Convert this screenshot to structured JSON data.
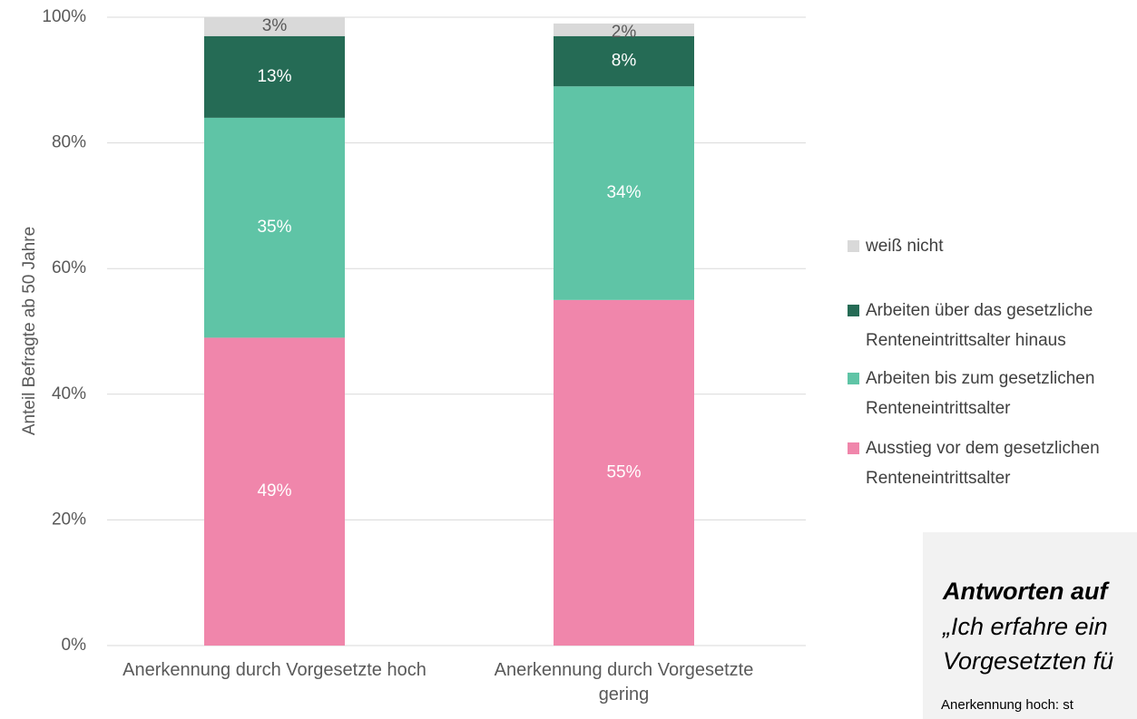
{
  "chart_data": {
    "type": "stacked-bar",
    "y_label": "Anteil Befragte ab 50 Jahre",
    "categories": [
      "Anerkennung durch Vorgesetzte hoch",
      "Anerkennung durch Vorgesetzte gering"
    ],
    "series": [
      {
        "name": "Ausstieg vor dem gesetzlichen Renteneintrittsalter",
        "color": "#f086ab",
        "values": [
          49,
          55
        ],
        "value_labels": [
          "49%",
          "55%"
        ]
      },
      {
        "name": "Arbeiten bis zum gesetzlichen Renteneintrittsalter",
        "color": "#5fc4a6",
        "values": [
          35,
          34
        ],
        "value_labels": [
          "35%",
          "34%"
        ]
      },
      {
        "name": "Arbeiten über das gesetzliche Renteneintrittsalter hinaus",
        "color": "#256b55",
        "values": [
          13,
          8
        ],
        "value_labels": [
          "13%",
          "8%"
        ]
      },
      {
        "name": "weiß nicht",
        "color": "#d9d9d9",
        "values": [
          3,
          2
        ],
        "value_labels": [
          "3%",
          "2%"
        ]
      }
    ],
    "ylim": [
      0,
      100
    ],
    "yticks": [
      {
        "value": 0,
        "label": "0%"
      },
      {
        "value": 20,
        "label": "20%"
      },
      {
        "value": 40,
        "label": "40%"
      },
      {
        "value": 60,
        "label": "60%"
      },
      {
        "value": 80,
        "label": "80%"
      },
      {
        "value": 100,
        "label": "100%"
      }
    ],
    "grid": true,
    "legend": "right",
    "annotation": {
      "title": "Antworten auf",
      "lines": [
        "„Ich erfahre ein",
        "Vorgesetzten fü"
      ],
      "note": "Anerkennung hoch: st"
    }
  }
}
